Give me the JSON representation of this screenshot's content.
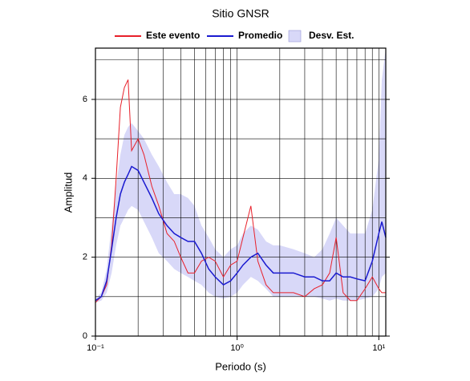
{
  "chart_data": {
    "type": "line",
    "title": "Sitio GNSR",
    "xlabel": "Periodo (s)",
    "ylabel": "Amplitud",
    "xscale": "log",
    "xlim": [
      0.1,
      11.2
    ],
    "ylim": [
      0,
      7.3
    ],
    "xticks": [
      {
        "value": 0.1,
        "label": "10⁻¹"
      },
      {
        "value": 1,
        "label": "10⁰"
      },
      {
        "value": 10,
        "label": "10¹"
      }
    ],
    "xgrid": [
      0.2,
      0.3,
      0.4,
      0.5,
      0.6,
      0.7,
      0.8,
      0.9,
      1,
      2,
      3,
      4,
      5,
      6,
      7,
      8,
      9,
      10
    ],
    "yticks": [
      0,
      2,
      4,
      6
    ],
    "ygrid": [
      1,
      2,
      3,
      4,
      5,
      6,
      7
    ],
    "grid": true,
    "x": [
      0.1,
      0.11,
      0.12,
      0.13,
      0.14,
      0.15,
      0.16,
      0.17,
      0.18,
      0.2,
      0.22,
      0.25,
      0.28,
      0.32,
      0.36,
      0.4,
      0.45,
      0.5,
      0.56,
      0.63,
      0.7,
      0.8,
      0.9,
      1.0,
      1.1,
      1.25,
      1.4,
      1.6,
      1.8,
      2.0,
      2.5,
      3.0,
      3.5,
      4.0,
      4.5,
      5.0,
      5.6,
      6.3,
      7.0,
      8.0,
      9.0,
      10.0,
      10.5,
      11.2
    ],
    "series": [
      {
        "name": "Este evento",
        "color": "#e8202a",
        "values": [
          0.85,
          1.0,
          1.3,
          2.3,
          4.0,
          5.8,
          6.3,
          6.5,
          4.7,
          5.0,
          4.6,
          3.8,
          3.3,
          2.6,
          2.4,
          2.0,
          1.6,
          1.6,
          1.9,
          2.0,
          1.9,
          1.5,
          1.8,
          1.9,
          2.5,
          3.3,
          1.9,
          1.3,
          1.1,
          1.1,
          1.1,
          1.0,
          1.2,
          1.3,
          1.6,
          2.5,
          1.1,
          0.9,
          0.9,
          1.2,
          1.5,
          1.2,
          1.1,
          1.1
        ]
      },
      {
        "name": "Promedio",
        "color": "#1a1ad0",
        "values": [
          0.9,
          1.0,
          1.4,
          2.2,
          3.0,
          3.6,
          3.9,
          4.1,
          4.3,
          4.2,
          3.9,
          3.5,
          3.1,
          2.8,
          2.6,
          2.5,
          2.4,
          2.4,
          2.1,
          1.7,
          1.5,
          1.3,
          1.4,
          1.6,
          1.8,
          2.0,
          2.1,
          1.8,
          1.6,
          1.6,
          1.6,
          1.5,
          1.5,
          1.4,
          1.4,
          1.6,
          1.5,
          1.5,
          1.45,
          1.4,
          1.9,
          2.6,
          2.9,
          2.5
        ]
      },
      {
        "name": "Desv. Est.",
        "color": "#d8d8f8",
        "lower": [
          0.85,
          0.9,
          1.1,
          1.6,
          2.3,
          2.8,
          3.0,
          3.2,
          3.3,
          3.2,
          2.9,
          2.5,
          2.1,
          1.9,
          1.7,
          1.6,
          1.5,
          1.4,
          1.3,
          1.1,
          1.0,
          0.95,
          1.0,
          1.1,
          1.3,
          1.5,
          1.4,
          1.2,
          1.0,
          1.0,
          1.0,
          1.0,
          1.0,
          0.95,
          0.9,
          0.95,
          0.9,
          0.9,
          0.9,
          0.95,
          1.0,
          1.2,
          1.5,
          1.6
        ],
        "upper": [
          0.95,
          1.1,
          1.7,
          2.8,
          3.8,
          4.6,
          5.1,
          5.3,
          5.4,
          5.2,
          5.0,
          4.6,
          4.3,
          3.9,
          3.6,
          3.6,
          3.5,
          3.3,
          2.8,
          2.5,
          2.2,
          2.0,
          2.2,
          2.3,
          2.6,
          2.8,
          2.7,
          2.4,
          2.3,
          2.3,
          2.2,
          2.1,
          2.0,
          2.2,
          2.6,
          3.0,
          2.8,
          2.6,
          2.6,
          2.6,
          3.2,
          4.5,
          6.5,
          7.3
        ]
      }
    ]
  }
}
